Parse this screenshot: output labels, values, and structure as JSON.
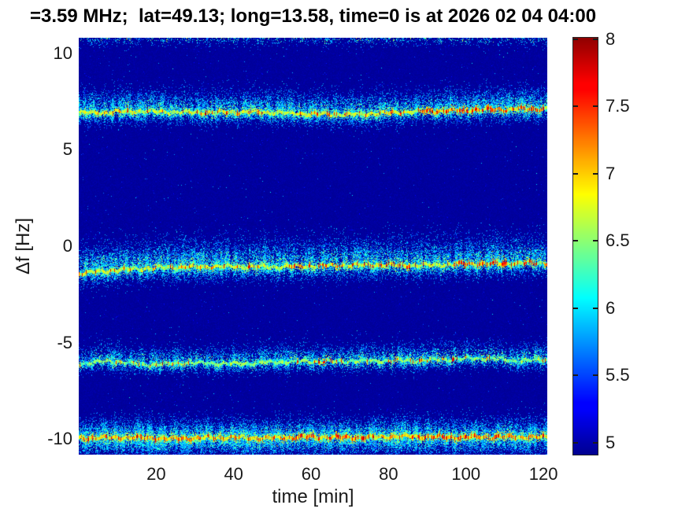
{
  "figure": {
    "background_color": "#ffffff",
    "text_color": "#1a1a1a",
    "title_color": "#000000"
  },
  "chart_data": {
    "type": "heatmap",
    "title": "=3.59 MHz;  lat=49.13; long=13.58, time=0 is at 2026 02 04 04:00",
    "xlabel": "time [min]",
    "ylabel": "Δf [Hz]",
    "xlim": [
      0,
      121
    ],
    "ylim": [
      -10.8,
      10.8
    ],
    "xticks": [
      20,
      40,
      60,
      80,
      100,
      120
    ],
    "yticks": [
      10,
      5,
      0,
      -5,
      -10
    ],
    "grid": false,
    "colormap": "jet",
    "background_level": 4.93,
    "colorbar": {
      "position": "right",
      "vmin": 4.91,
      "vmax": 8.01,
      "ticks": [
        8,
        7.5,
        7,
        6.5,
        6,
        5.5,
        5
      ]
    },
    "bands": [
      {
        "label": "doppler-trace-plus7Hz",
        "center_points": [
          [
            0,
            6.88
          ],
          [
            15,
            7.0
          ],
          [
            30,
            6.92
          ],
          [
            45,
            6.96
          ],
          [
            60,
            6.85
          ],
          [
            72,
            6.82
          ],
          [
            84,
            6.95
          ],
          [
            96,
            7.02
          ],
          [
            108,
            7.08
          ],
          [
            121,
            7.12
          ]
        ],
        "sigma_up": 0.55,
        "sigma_down": 0.33,
        "halo_density": 0.5,
        "core_halfwidth": 0.085,
        "core_value": [
          6.55,
          7.15
        ],
        "red_prob": 0.1,
        "hot_intervals": [
          [
            60,
            70,
            0.18
          ],
          [
            88,
            121,
            0.28
          ]
        ]
      },
      {
        "label": "doppler-trace-minus1Hz",
        "center_points": [
          [
            0,
            -1.42
          ],
          [
            8,
            -1.25
          ],
          [
            20,
            -1.12
          ],
          [
            35,
            -1.05
          ],
          [
            50,
            -1.08
          ],
          [
            62,
            -1.02
          ],
          [
            75,
            -0.98
          ],
          [
            88,
            -1.0
          ],
          [
            100,
            -0.92
          ],
          [
            110,
            -0.9
          ],
          [
            121,
            -0.86
          ]
        ],
        "sigma_up": 0.72,
        "sigma_down": 0.38,
        "halo_density": 0.5,
        "core_halfwidth": 0.085,
        "core_value": [
          6.5,
          7.1
        ],
        "red_prob": 0.08,
        "hot_intervals": [
          [
            55,
            90,
            0.15
          ],
          [
            98,
            121,
            0.3
          ]
        ]
      },
      {
        "label": "doppler-trace-minus6Hz",
        "center_points": [
          [
            0,
            -6.1
          ],
          [
            8,
            -5.95
          ],
          [
            18,
            -6.15
          ],
          [
            28,
            -6.05
          ],
          [
            40,
            -6.1
          ],
          [
            52,
            -6.0
          ],
          [
            64,
            -5.98
          ],
          [
            76,
            -5.95
          ],
          [
            88,
            -5.92
          ],
          [
            98,
            -5.85
          ],
          [
            106,
            -5.8
          ],
          [
            113,
            -5.95
          ],
          [
            121,
            -5.88
          ]
        ],
        "sigma_up": 0.45,
        "sigma_down": 0.28,
        "halo_density": 0.42,
        "core_halfwidth": 0.075,
        "core_value": [
          6.3,
          6.9
        ],
        "red_prob": 0.05,
        "hot_intervals": [
          [
            55,
            70,
            0.12
          ],
          [
            80,
            100,
            0.12
          ]
        ]
      },
      {
        "label": "doppler-trace-minus10Hz",
        "center_points": [
          [
            0,
            -9.95
          ],
          [
            12,
            -9.9
          ],
          [
            24,
            -9.98
          ],
          [
            36,
            -9.9
          ],
          [
            48,
            -9.95
          ],
          [
            60,
            -9.88
          ],
          [
            72,
            -9.92
          ],
          [
            84,
            -9.85
          ],
          [
            96,
            -9.9
          ],
          [
            108,
            -9.88
          ],
          [
            121,
            -9.9
          ]
        ],
        "sigma_up": 0.5,
        "sigma_down": 0.5,
        "halo_density": 0.62,
        "core_halfwidth": 0.09,
        "core_value": [
          6.7,
          7.3
        ],
        "red_prob": 0.22,
        "hot_intervals": [
          [
            55,
            78,
            0.2
          ],
          [
            85,
            112,
            0.2
          ]
        ]
      },
      {
        "label": "top-edge-faint-trace",
        "center_points": [
          [
            0,
            10.85
          ],
          [
            121,
            10.85
          ]
        ],
        "sigma_up": 0.2,
        "sigma_down": 0.25,
        "halo_density": 0.18,
        "core_halfwidth": 0,
        "core_value": [
          0,
          0
        ],
        "red_prob": 0,
        "hot_intervals": []
      }
    ]
  }
}
